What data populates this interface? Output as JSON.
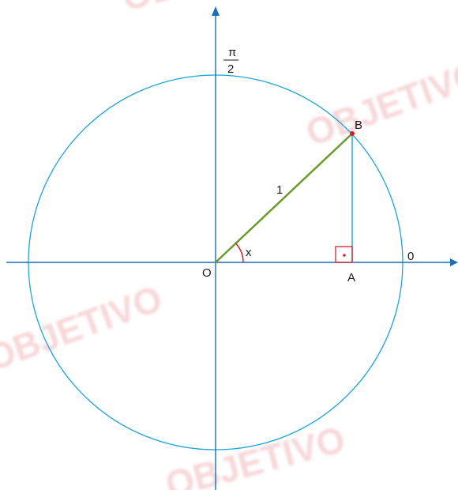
{
  "diagram": {
    "angle_label_top": {
      "numerator": "π",
      "denominator": "2"
    },
    "point_b": "B",
    "radius_label": "1",
    "angle_label": "x",
    "origin": "O",
    "point_a": "A",
    "angle_zero": "0",
    "watermarks": [
      "OBJETIVO",
      "OBJETIVO",
      "OBJETIVO",
      "OBJETIVO"
    ]
  }
}
